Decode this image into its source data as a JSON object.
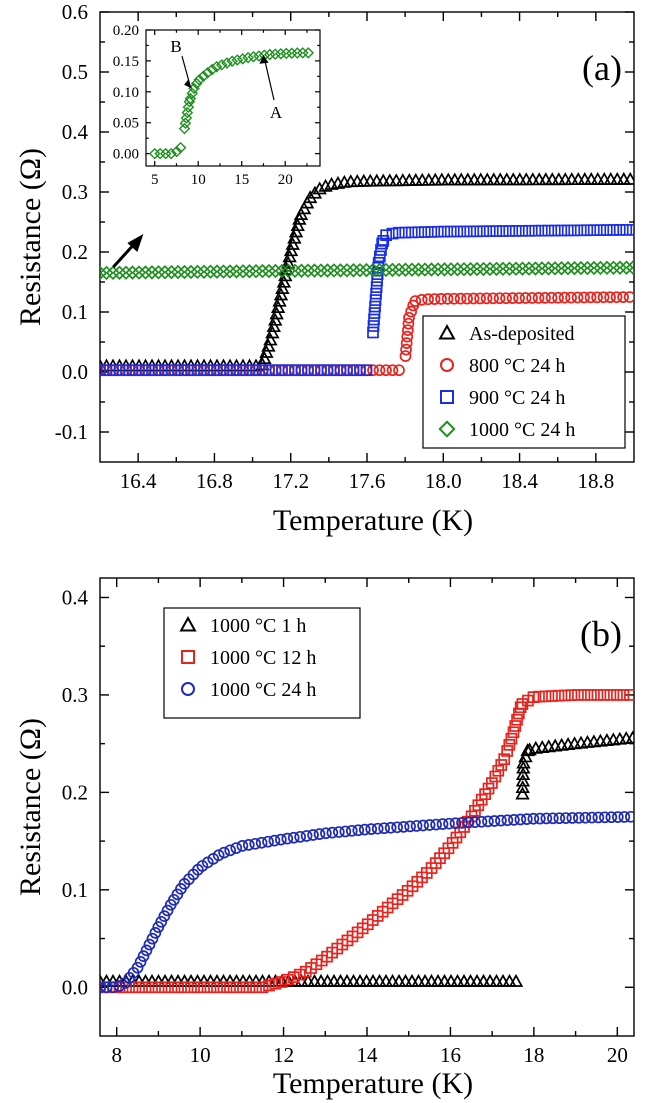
{
  "chart_data": [
    {
      "type": "scatter",
      "panel_label": "(a)",
      "xlabel": "Temperature (K)",
      "ylabel": "Resistance (Ω)",
      "xlim": [
        16.2,
        19.0
      ],
      "ylim": [
        -0.15,
        0.6
      ],
      "xticks": [
        "16.4",
        "16.8",
        "17.2",
        "17.6",
        "18.0",
        "18.4",
        "18.8"
      ],
      "yticks": [
        "-0.1",
        "0.0",
        "0.1",
        "0.2",
        "0.3",
        "0.4",
        "0.5",
        "0.6"
      ],
      "legend": {
        "position": "bottom-right"
      },
      "series": [
        {
          "name": "As-deposited",
          "marker": "triangle",
          "color": "#000000",
          "x": [
            16.2,
            17.05,
            17.1,
            17.15,
            17.2,
            17.25,
            17.3,
            17.35,
            17.4,
            17.5,
            17.6,
            18.0,
            19.0
          ],
          "y": [
            0.01,
            0.01,
            0.06,
            0.13,
            0.2,
            0.26,
            0.29,
            0.305,
            0.312,
            0.317,
            0.318,
            0.32,
            0.321
          ]
        },
        {
          "name": "800 °C 24 h",
          "marker": "circle",
          "color": "#e8231e",
          "x": [
            16.2,
            17.7,
            17.78,
            17.8,
            17.82,
            17.85,
            17.9,
            18.0,
            19.0
          ],
          "y": [
            0.003,
            0.003,
            0.003,
            0.02,
            0.09,
            0.118,
            0.121,
            0.122,
            0.125
          ]
        },
        {
          "name": "900 °C 24 h",
          "marker": "square",
          "color": "#1a2ee8",
          "x": [
            16.2,
            17.6,
            17.62,
            17.64,
            17.66,
            17.68,
            17.7,
            17.75,
            18.0,
            19.0
          ],
          "y": [
            0.003,
            0.003,
            0.02,
            0.1,
            0.18,
            0.215,
            0.228,
            0.232,
            0.234,
            0.237
          ]
        },
        {
          "name": "1000 °C 24 h",
          "marker": "diamond",
          "color": "#1f8f1f",
          "x": [
            16.2,
            17.0,
            18.0,
            19.0
          ],
          "y": [
            0.165,
            0.168,
            0.171,
            0.174
          ]
        }
      ],
      "annotations": [
        {
          "text": "arrow",
          "x": 16.27,
          "y": 0.175
        }
      ],
      "inset": {
        "xlim": [
          4,
          24
        ],
        "ylim": [
          -0.02,
          0.2
        ],
        "xticks": [
          "5",
          "10",
          "15",
          "20"
        ],
        "yticks": [
          "0.00",
          "0.05",
          "0.10",
          "0.15",
          "0.20"
        ],
        "series": [
          {
            "name": "",
            "marker": "diamond",
            "color": "#1f8f1f",
            "x": [
              5,
              6,
              7,
              7.5,
              8,
              8.3,
              8.6,
              9,
              9.5,
              10,
              11,
              12,
              14,
              16,
              18,
              20,
              22,
              23
            ],
            "y": [
              0.0,
              0.0,
              0.0,
              0.003,
              0.01,
              0.03,
              0.055,
              0.085,
              0.105,
              0.118,
              0.13,
              0.14,
              0.15,
              0.156,
              0.16,
              0.162,
              0.163,
              0.163
            ]
          }
        ],
        "annotations": [
          {
            "text": "B",
            "x": 9.3,
            "y": 0.105
          },
          {
            "text": "A",
            "x": 17.5,
            "y": 0.16
          }
        ]
      }
    },
    {
      "type": "scatter",
      "panel_label": "(b)",
      "xlabel": "Temperature (K)",
      "ylabel": "Resistance (Ω)",
      "xlim": [
        7.6,
        20.4
      ],
      "ylim": [
        -0.05,
        0.42
      ],
      "xticks": [
        "8",
        "10",
        "12",
        "14",
        "16",
        "18",
        "20"
      ],
      "yticks": [
        "0.0",
        "0.1",
        "0.2",
        "0.3",
        "0.4"
      ],
      "legend": {
        "position": "top-left"
      },
      "series": [
        {
          "name": "1000 °C 1 h",
          "marker": "triangle",
          "color": "#000000",
          "x": [
            7.6,
            17.5,
            17.62,
            17.65,
            17.7,
            17.75,
            17.85,
            18.0,
            19.0,
            20.4
          ],
          "y": [
            0.006,
            0.006,
            0.006,
            0.06,
            0.16,
            0.23,
            0.243,
            0.245,
            0.25,
            0.256
          ]
        },
        {
          "name": "1000 °C 12 h",
          "marker": "square",
          "color": "#e8231e",
          "x": [
            7.6,
            11.5,
            12.0,
            12.5,
            13.0,
            13.5,
            14.0,
            14.5,
            15.0,
            15.5,
            16.0,
            16.5,
            17.0,
            17.3,
            17.5,
            17.7,
            18.0,
            19.0,
            20.4
          ],
          "y": [
            0.0,
            0.0,
            0.006,
            0.015,
            0.03,
            0.047,
            0.064,
            0.082,
            0.1,
            0.12,
            0.145,
            0.175,
            0.21,
            0.235,
            0.26,
            0.29,
            0.298,
            0.3,
            0.3
          ]
        },
        {
          "name": "1000 °C 24 h",
          "marker": "circle",
          "color": "#1f2bb5",
          "x": [
            7.6,
            8.0,
            8.2,
            8.5,
            8.8,
            9.0,
            9.3,
            9.6,
            10.0,
            10.5,
            11.0,
            12.0,
            13.0,
            14.0,
            16.0,
            18.0,
            20.4
          ],
          "y": [
            0.0,
            0.0,
            0.004,
            0.02,
            0.045,
            0.062,
            0.085,
            0.105,
            0.123,
            0.137,
            0.145,
            0.152,
            0.158,
            0.162,
            0.168,
            0.173,
            0.175
          ]
        }
      ]
    }
  ]
}
